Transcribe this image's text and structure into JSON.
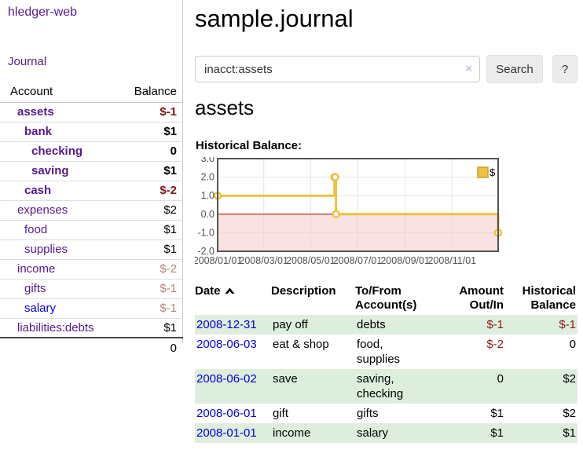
{
  "sidebar": {
    "brand": "hledger-web",
    "journal_link": "Journal",
    "account_header": "Account",
    "balance_header": "Balance",
    "total": "0",
    "accounts": [
      {
        "label": "assets",
        "depth": 1,
        "bold": true,
        "balance": "$-1",
        "tone": "neg-strong",
        "link": "purple"
      },
      {
        "label": "bank",
        "depth": 2,
        "bold": true,
        "balance": "$1",
        "tone": "normal",
        "link": "purple"
      },
      {
        "label": "checking",
        "depth": 3,
        "bold": true,
        "balance": "0",
        "tone": "normal",
        "link": "purple"
      },
      {
        "label": "saving",
        "depth": 3,
        "bold": true,
        "balance": "$1",
        "tone": "normal",
        "link": "purple"
      },
      {
        "label": "cash",
        "depth": 2,
        "bold": true,
        "balance": "$-2",
        "tone": "neg-strong",
        "link": "purple"
      },
      {
        "label": "expenses",
        "depth": 1,
        "bold": false,
        "balance": "$2",
        "tone": "normal",
        "link": "purple"
      },
      {
        "label": "food",
        "depth": 2,
        "bold": false,
        "balance": "$1",
        "tone": "normal",
        "link": "purple"
      },
      {
        "label": "supplies",
        "depth": 2,
        "bold": false,
        "balance": "$1",
        "tone": "normal",
        "link": "purple"
      },
      {
        "label": "income",
        "depth": 1,
        "bold": false,
        "balance": "$-2",
        "tone": "neg-muted",
        "link": "purple"
      },
      {
        "label": "gifts",
        "depth": 2,
        "bold": false,
        "balance": "$-1",
        "tone": "neg-muted",
        "link": "purple"
      },
      {
        "label": "salary",
        "depth": 2,
        "bold": false,
        "balance": "$-1",
        "tone": "neg-muted",
        "link": "blue"
      },
      {
        "label": "liabilities:debts",
        "depth": 1,
        "bold": false,
        "balance": "$1",
        "tone": "normal",
        "link": "purple"
      }
    ]
  },
  "header": {
    "title": "sample.journal"
  },
  "search": {
    "value": "inacct:assets",
    "clear_icon": "×",
    "button": "Search",
    "help_button": "?"
  },
  "account_page": {
    "heading": "assets",
    "chart_label": "Historical Balance:"
  },
  "chart_data": {
    "type": "line",
    "step": true,
    "series": [
      {
        "name": "$",
        "color": "#EDC240",
        "points": [
          [
            "2008-01-01",
            1
          ],
          [
            "2008-06-01",
            2
          ],
          [
            "2008-06-02",
            2
          ],
          [
            "2008-06-03",
            0
          ],
          [
            "2008-12-31",
            -1
          ]
        ]
      }
    ],
    "x_range": [
      "2008-01-01",
      "2008-12-31"
    ],
    "ylim": [
      -2,
      3
    ],
    "y_ticks": [
      {
        "v": 3,
        "label": "3.0"
      },
      {
        "v": 2,
        "label": "2.0"
      },
      {
        "v": 1,
        "label": "1.0"
      },
      {
        "v": 0,
        "label": "0.0"
      },
      {
        "v": -1,
        "label": "-1.0"
      },
      {
        "v": -2,
        "label": "-2.0"
      }
    ],
    "x_ticks": [
      {
        "date": "2008-01-01",
        "label": "2008/01/01"
      },
      {
        "date": "2008-03-01",
        "label": "2008/03/01"
      },
      {
        "date": "2008-05-01",
        "label": "2008/05/01"
      },
      {
        "date": "2008-07-01",
        "label": "2008/07/01"
      },
      {
        "date": "2008-09-01",
        "label": "2008/09/01"
      },
      {
        "date": "2008-11-01",
        "label": "2008/11/01"
      }
    ],
    "legend": "$",
    "grid": true,
    "legend_position": "top-right",
    "negative_region_color": "#f6caca",
    "zero_line_color": "#a40000",
    "border_color": "#545454",
    "grid_color": "#e6e6e6",
    "tick_color": "#545454"
  },
  "transactions": {
    "headers": {
      "date": "Date",
      "description": "Description",
      "tofrom_line1": "To/From",
      "tofrom_line2": "Account(s)",
      "amount_line1": "Amount",
      "amount_line2": "Out/In",
      "hist_line1": "Historical",
      "hist_line2": "Balance"
    },
    "rows": [
      {
        "date": "2008-12-31",
        "description": "pay off",
        "accounts": "debts",
        "amount": "$-1",
        "amount_neg": true,
        "balance": "$-1",
        "balance_neg": true,
        "shaded": true
      },
      {
        "date": "2008-06-03",
        "description": "eat & shop",
        "accounts": "food, supplies",
        "amount": "$-2",
        "amount_neg": true,
        "balance": "0",
        "balance_neg": false,
        "shaded": false
      },
      {
        "date": "2008-06-02",
        "description": "save",
        "accounts": "saving, checking",
        "amount": "0",
        "amount_neg": false,
        "balance": "$2",
        "balance_neg": false,
        "shaded": true
      },
      {
        "date": "2008-06-01",
        "description": "gift",
        "accounts": "gifts",
        "amount": "$1",
        "amount_neg": false,
        "balance": "$2",
        "balance_neg": false,
        "shaded": false
      },
      {
        "date": "2008-01-01",
        "description": "income",
        "accounts": "salary",
        "amount": "$1",
        "amount_neg": false,
        "balance": "$1",
        "balance_neg": false,
        "shaded": true
      }
    ]
  }
}
